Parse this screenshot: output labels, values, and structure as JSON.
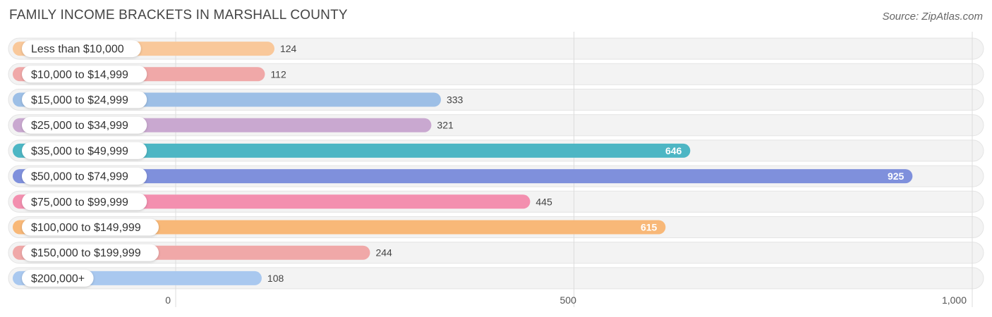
{
  "chart_data": {
    "type": "bar",
    "orientation": "horizontal",
    "title": "FAMILY INCOME BRACKETS IN MARSHALL COUNTY",
    "source": "Source: ZipAtlas.com",
    "xlabel": "",
    "ylabel": "",
    "xlim": [
      0,
      1000
    ],
    "xticks": [
      0,
      500,
      1000
    ],
    "xtick_labels": [
      "0",
      "500",
      "1,000"
    ],
    "grid": true,
    "categories": [
      "Less than $10,000",
      "$10,000 to $14,999",
      "$15,000 to $24,999",
      "$25,000 to $34,999",
      "$35,000 to $49,999",
      "$50,000 to $74,999",
      "$75,000 to $99,999",
      "$100,000 to $149,999",
      "$150,000 to $199,999",
      "$200,000+"
    ],
    "values": [
      124,
      112,
      333,
      321,
      646,
      925,
      445,
      615,
      244,
      108
    ],
    "value_labels": [
      "124",
      "112",
      "333",
      "321",
      "646",
      "925",
      "445",
      "615",
      "244",
      "108"
    ],
    "colors": [
      "#f9c89a",
      "#f0a8a8",
      "#9dbfe6",
      "#c9a8d0",
      "#4db6c4",
      "#7f90dc",
      "#f38faf",
      "#f8b878",
      "#f0a8a8",
      "#a9c8ef"
    ]
  }
}
